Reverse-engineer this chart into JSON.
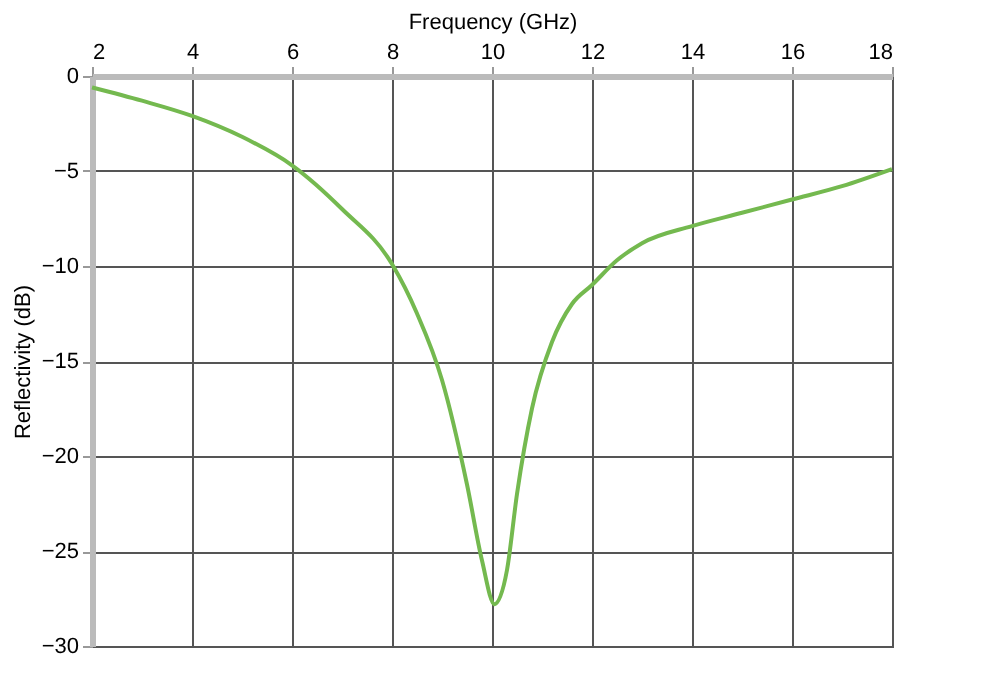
{
  "chart_data": {
    "type": "line",
    "xlabel": "Frequency (GHz)",
    "ylabel": "Reflectivity (dB)",
    "xlim": [
      2,
      18
    ],
    "xticks": [
      2,
      4,
      6,
      8,
      10,
      12,
      14,
      16,
      18
    ],
    "ylim": [
      -30,
      0
    ],
    "yticks": [
      -30,
      -25,
      -20,
      -15,
      -10,
      -5,
      0
    ],
    "grid": true,
    "series": [
      {
        "color": "#74b94f",
        "x": [
          2,
          3,
          4,
          5,
          6,
          7,
          8,
          8.5,
          9,
          9.5,
          9.8,
          10.05,
          10.3,
          10.5,
          10.8,
          11.2,
          11.6,
          12,
          12.5,
          13,
          14,
          15,
          16,
          17,
          18
        ],
        "values": [
          -0.6,
          -1.3,
          -2.1,
          -3.2,
          -4.7,
          -7,
          -9.9,
          -12.5,
          -16,
          -21.5,
          -25.5,
          -27.8,
          -26,
          -22,
          -17.5,
          -14,
          -12,
          -11,
          -9.7,
          -8.8,
          -7.9,
          -7.2,
          -6.5,
          -5.8,
          -4.9
        ]
      }
    ]
  }
}
